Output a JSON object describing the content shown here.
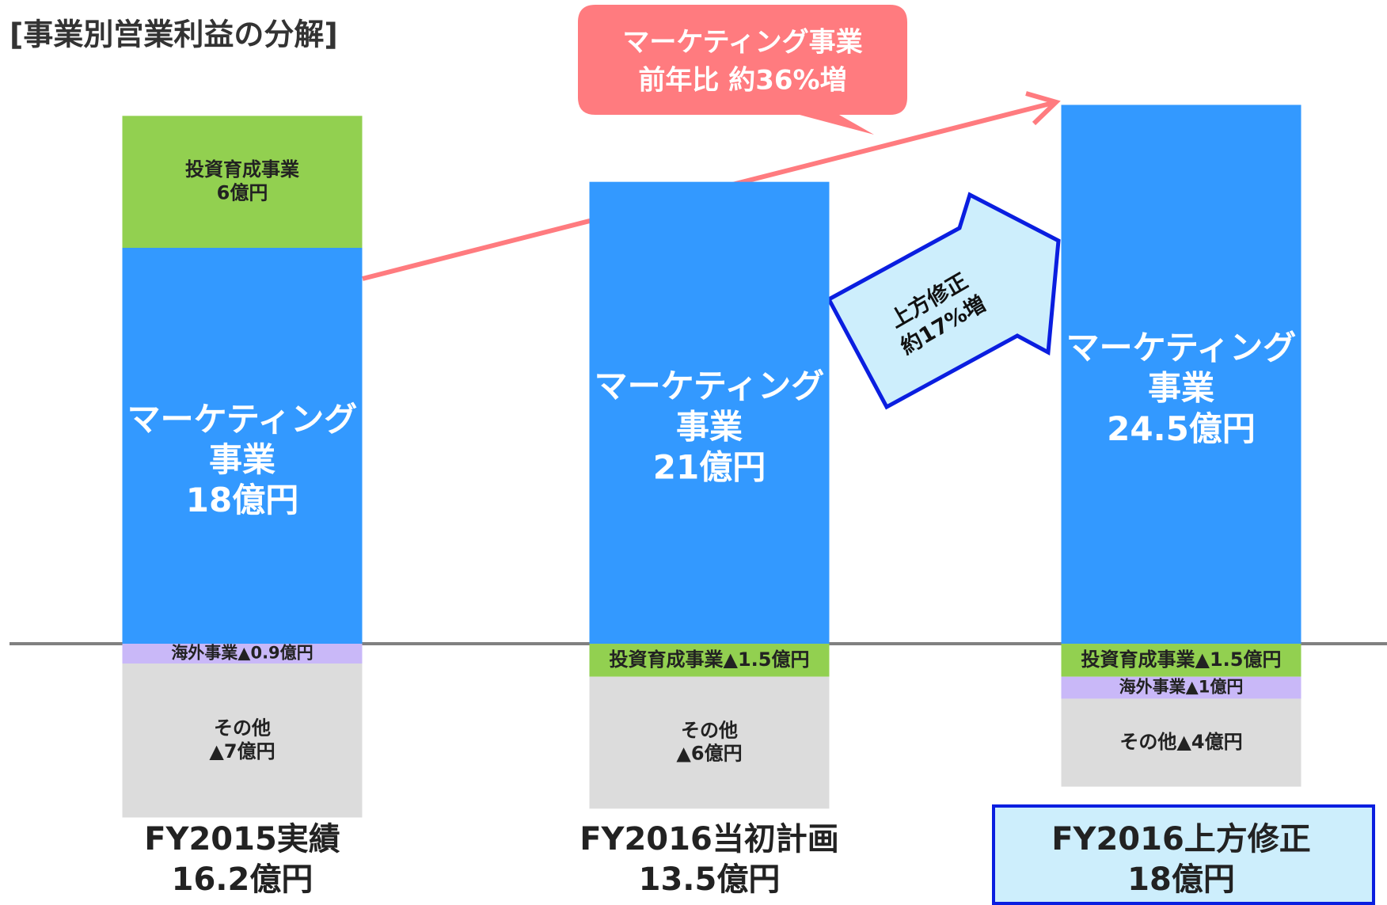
{
  "chart_data": {
    "type": "stacked-bar",
    "title": "[事業別営業利益の分解]",
    "categories": [
      "FY2015実績",
      "FY2016当初計画",
      "FY2016上方修正"
    ],
    "totals": [
      16.2,
      13.5,
      18
    ],
    "total_labels": [
      "16.2億円",
      "13.5億円",
      "18億円"
    ],
    "ylim": [
      -9,
      27
    ],
    "series": [
      {
        "color": "#3399ff",
        "values": [
          18,
          21,
          24.5
        ],
        "value_labels": [
          "マーケティング\n事業\n18億円",
          "マーケティング\n事業\n21億円",
          "マーケティング\n事業\n24.5億円"
        ]
      },
      {
        "color": "#92d050",
        "values": [
          6,
          -1.5,
          -1.5
        ],
        "value_labels": [
          "投資育成事業\n6億円",
          "投資育成事業▲1.5億円",
          "投資育成事業▲1.5億円"
        ]
      },
      {
        "color": "#c9b8f8",
        "values": [
          -0.9,
          null,
          -1
        ],
        "value_labels": [
          "海外事業▲0.9億円",
          null,
          "海外事業▲1億円"
        ]
      },
      {
        "color": "#dcdcdc",
        "values": [
          -7,
          -6,
          -4
        ],
        "value_labels": [
          "その他\n▲7億円",
          "その他\n▲6億円",
          "その他▲4億円"
        ]
      }
    ],
    "annotations": {
      "callout": [
        "マーケティング事業",
        "前年比 約36%増"
      ],
      "arrow": [
        "上方修正",
        "約17%増"
      ]
    }
  }
}
